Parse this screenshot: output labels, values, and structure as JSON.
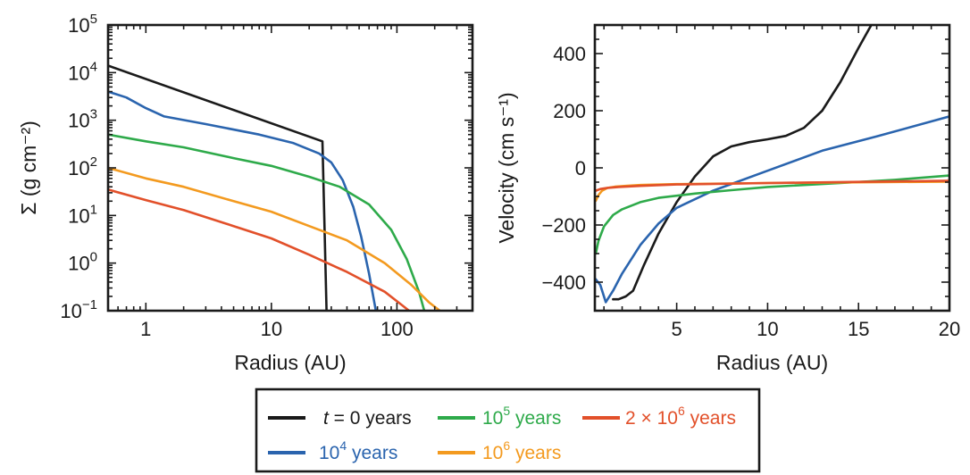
{
  "chart_data": [
    {
      "type": "line",
      "xlabel": "Radius (AU)",
      "ylabel": "Σ (g cm⁻²)",
      "xscale": "log",
      "yscale": "log",
      "xlim": [
        0.5,
        400
      ],
      "ylim": [
        0.1,
        100000
      ],
      "xticks": [
        1,
        10,
        100
      ],
      "xtick_labels": [
        "1",
        "10",
        "100"
      ],
      "yticks": [
        0.1,
        1,
        10,
        100,
        1000,
        10000,
        100000
      ],
      "ytick_labels": [
        {
          "base": "10",
          "exp": "−1"
        },
        {
          "base": "10",
          "exp": "0"
        },
        {
          "base": "10",
          "exp": "1"
        },
        {
          "base": "10",
          "exp": "2"
        },
        {
          "base": "10",
          "exp": "3"
        },
        {
          "base": "10",
          "exp": "4"
        },
        {
          "base": "10",
          "exp": "5"
        }
      ],
      "series": [
        {
          "name": "t = 0 years",
          "color": "#1a1a1a",
          "x": [
            0.5,
            25.5,
            25.5,
            27.5
          ],
          "y": [
            14000,
            360,
            360,
            0.1
          ]
        },
        {
          "name": "10^4 years",
          "color": "#2a64ae",
          "x": [
            0.5,
            0.7,
            1,
            1.4,
            3,
            8,
            15,
            24,
            30,
            37,
            45,
            52,
            60,
            68
          ],
          "y": [
            4000,
            3000,
            1800,
            1200,
            830,
            500,
            330,
            200,
            130,
            55,
            15,
            3.5,
            0.6,
            0.1
          ]
        },
        {
          "name": "10^5 years",
          "color": "#2eaa4a",
          "x": [
            0.5,
            1,
            2,
            5,
            10,
            20,
            35,
            60,
            90,
            120,
            150,
            165
          ],
          "y": [
            500,
            360,
            270,
            160,
            110,
            65,
            40,
            17,
            5,
            1.2,
            0.25,
            0.1
          ]
        },
        {
          "name": "10^6 years",
          "color": "#f39a1f",
          "x": [
            0.5,
            1,
            2,
            5,
            10,
            20,
            40,
            80,
            130,
            180,
            220
          ],
          "y": [
            100,
            60,
            40,
            20,
            12,
            6,
            3,
            1,
            0.35,
            0.15,
            0.1
          ]
        },
        {
          "name": "2 × 10^6 years",
          "color": "#e2502a",
          "x": [
            0.5,
            1,
            2,
            5,
            10,
            20,
            40,
            80,
            110,
            125
          ],
          "y": [
            35,
            21,
            13,
            6,
            3.3,
            1.5,
            0.65,
            0.25,
            0.13,
            0.1
          ]
        }
      ]
    },
    {
      "type": "line",
      "xlabel": "Radius (AU)",
      "ylabel": "Velocity (cm s⁻¹)",
      "xlim": [
        0.5,
        20
      ],
      "ylim": [
        -500,
        500
      ],
      "xticks": [
        5,
        10,
        15,
        20
      ],
      "xtick_labels": [
        "5",
        "10",
        "15",
        "20"
      ],
      "yticks": [
        -400,
        -200,
        0,
        200,
        400
      ],
      "ytick_labels": [
        "−400",
        "−200",
        "0",
        "200",
        "400"
      ],
      "series": [
        {
          "name": "t = 0 years",
          "color": "#1a1a1a",
          "x": [
            1.5,
            1.8,
            2.2,
            2.6,
            3.2,
            4,
            5,
            6,
            7,
            8,
            9,
            10,
            11,
            12,
            13,
            14,
            15,
            15.7
          ],
          "y": [
            -460,
            -460,
            -450,
            -430,
            -340,
            -230,
            -120,
            -30,
            40,
            75,
            90,
            100,
            112,
            140,
            200,
            300,
            420,
            500
          ]
        },
        {
          "name": "10^4 years",
          "color": "#2a64ae",
          "x": [
            0.55,
            0.8,
            1.1,
            1.5,
            2,
            3,
            4,
            5,
            7,
            10,
            13,
            16,
            20
          ],
          "y": [
            -390,
            -410,
            -470,
            -430,
            -370,
            -270,
            -195,
            -140,
            -80,
            -10,
            60,
            110,
            180
          ]
        },
        {
          "name": "10^5 years",
          "color": "#2eaa4a",
          "x": [
            0.55,
            0.7,
            1,
            1.5,
            2,
            3,
            4,
            6,
            8,
            10,
            14,
            17,
            20
          ],
          "y": [
            -300,
            -255,
            -205,
            -165,
            -145,
            -120,
            -105,
            -90,
            -78,
            -67,
            -53,
            -42,
            -27
          ]
        },
        {
          "name": "10^6 years",
          "color": "#f39a1f",
          "x": [
            0.55,
            0.7,
            0.9,
            1.2,
            1.6,
            2.2,
            3,
            5,
            10,
            20
          ],
          "y": [
            -115,
            -95,
            -80,
            -70,
            -66,
            -63,
            -60,
            -57,
            -53,
            -48
          ]
        },
        {
          "name": "2 × 10^6 years",
          "color": "#e2502a",
          "x": [
            0.55,
            0.8,
            1.2,
            1.8,
            3,
            5,
            10,
            20
          ],
          "y": [
            -80,
            -74,
            -70,
            -67,
            -63,
            -58,
            -53,
            -45
          ]
        }
      ]
    }
  ],
  "legend": {
    "placement": "bottom-center",
    "entries": [
      {
        "prefix": "t",
        "mid": " = 0 years",
        "sup": "",
        "suffix": "",
        "color": "#1a1a1a"
      },
      {
        "prefix": "",
        "mid": "10",
        "sup": "5",
        "suffix": " years",
        "color": "#2eaa4a"
      },
      {
        "prefix": "",
        "mid": "2 × 10",
        "sup": "6",
        "suffix": " years",
        "color": "#e2502a"
      },
      {
        "prefix": "",
        "mid": "10",
        "sup": "4",
        "suffix": " years",
        "color": "#2a64ae"
      },
      {
        "prefix": "",
        "mid": "10",
        "sup": "6",
        "suffix": " years",
        "color": "#f39a1f"
      }
    ]
  }
}
